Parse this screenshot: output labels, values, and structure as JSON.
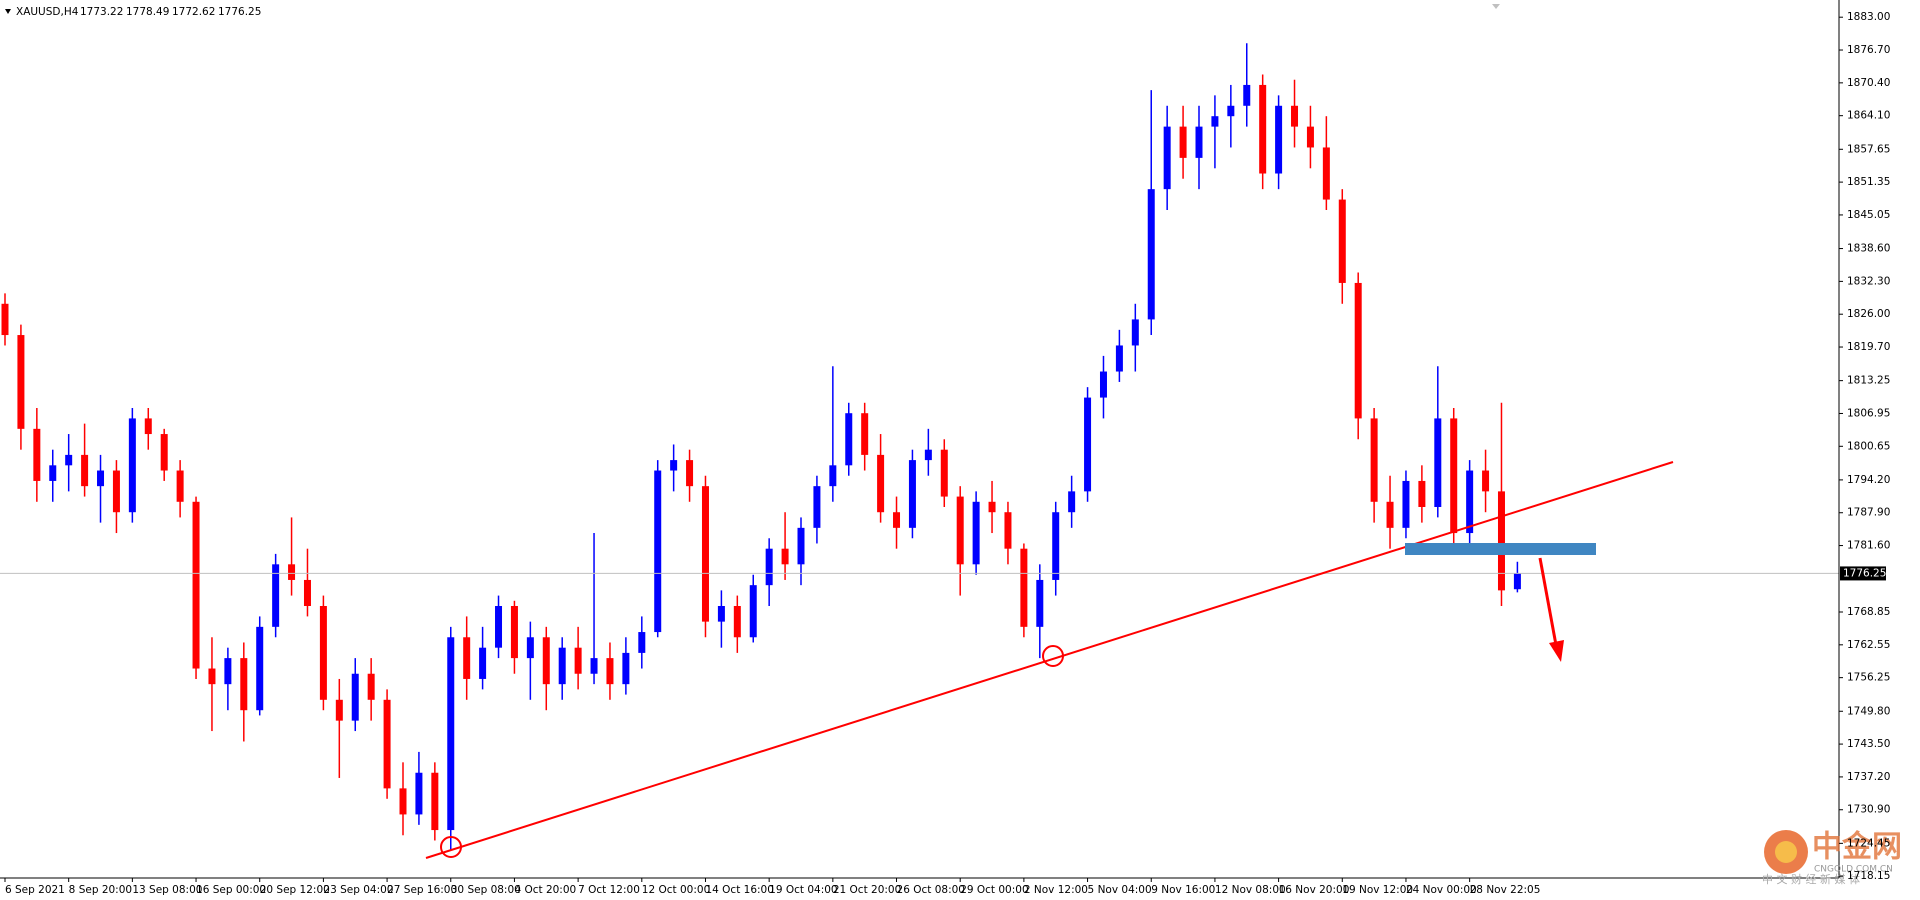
{
  "chart_data": {
    "type": "candlestick",
    "symbol": "XAUUSD,H4",
    "categories": [
      "6 Sep 2021",
      null,
      null,
      null,
      "8 Sep 20:00",
      null,
      null,
      null,
      "13 Sep 08:00",
      null,
      null,
      null,
      "16 Sep 00:00",
      null,
      null,
      null,
      "20 Sep 12:00",
      null,
      null,
      null,
      "23 Sep 04:00",
      null,
      null,
      null,
      "27 Sep 16:00",
      null,
      null,
      null,
      "30 Sep 08:00",
      null,
      null,
      null,
      "4 Oct 20:00",
      null,
      null,
      null,
      "7 Oct 12:00",
      null,
      null,
      null,
      "12 Oct 00:00",
      null,
      null,
      null,
      "14 Oct 16:00",
      null,
      null,
      null,
      "19 Oct 04:00",
      null,
      null,
      null,
      "21 Oct 20:00",
      null,
      null,
      null,
      "26 Oct 08:00",
      null,
      null,
      null,
      "29 Oct 00:00",
      null,
      null,
      null,
      "2 Nov 12:00",
      null,
      null,
      null,
      "5 Nov 04:00",
      null,
      null,
      null,
      "9 Nov 16:00",
      null,
      null,
      null,
      "12 Nov 08:00",
      null,
      null,
      null,
      "16 Nov 20:00",
      null,
      null,
      null,
      "19 Nov 12:00",
      null,
      null,
      null,
      "24 Nov 00:00",
      null,
      null,
      null,
      "28 Nov 22:05",
      null,
      null,
      null
    ],
    "open": [
      1828,
      1822,
      1804,
      1794,
      1797,
      1799,
      1793,
      1796,
      1788,
      1806,
      1803,
      1796,
      1790,
      1758,
      1755,
      1760,
      1750,
      1766,
      1778,
      1775,
      1770,
      1752,
      1748,
      1757,
      1752,
      1735,
      1730,
      1738,
      1727,
      1764,
      1756,
      1762,
      1770,
      1760,
      1764,
      1755,
      1762,
      1757,
      1760,
      1755,
      1761,
      1765,
      1796,
      1798,
      1793,
      1767,
      1770,
      1764,
      1774,
      1781,
      1778,
      1785,
      1793,
      1797,
      1807,
      1799,
      1788,
      1785,
      1798,
      1800,
      1791,
      1778,
      1790,
      1788,
      1781,
      1766,
      1775,
      1788,
      1792,
      1810,
      1815,
      1820,
      1825,
      1850,
      1862,
      1856,
      1862,
      1864,
      1866,
      1870,
      1853,
      1866,
      1862,
      1858,
      1848,
      1832,
      1806,
      1790,
      1785,
      1794,
      1789,
      1806,
      1784,
      1796,
      1792,
      1773.22
    ],
    "high": [
      1830,
      1824,
      1808,
      1800,
      1803,
      1805,
      1799,
      1798,
      1808,
      1808,
      1804,
      1798,
      1791,
      1764,
      1762,
      1763,
      1768,
      1780,
      1787,
      1781,
      1772,
      1756,
      1760,
      1760,
      1754,
      1740,
      1742,
      1740,
      1766,
      1768,
      1766,
      1772,
      1771,
      1767,
      1766,
      1764,
      1766,
      1784,
      1763,
      1764,
      1768,
      1798,
      1801,
      1800,
      1795,
      1773,
      1772,
      1776,
      1783,
      1788,
      1787,
      1795,
      1816,
      1809,
      1809,
      1803,
      1791,
      1800,
      1804,
      1802,
      1793,
      1792,
      1794,
      1790,
      1782,
      1778,
      1790,
      1795,
      1812,
      1818,
      1823,
      1828,
      1869,
      1866,
      1866,
      1866,
      1868,
      1870,
      1878,
      1872,
      1868,
      1871,
      1866,
      1864,
      1850,
      1834,
      1808,
      1795,
      1796,
      1797,
      1816,
      1808,
      1798,
      1800,
      1809,
      1778.49
    ],
    "low": [
      1820,
      1800,
      1790,
      1790,
      1792,
      1791,
      1786,
      1784,
      1786,
      1800,
      1794,
      1787,
      1756,
      1746,
      1750,
      1744,
      1749,
      1764,
      1772,
      1768,
      1750,
      1737,
      1746,
      1748,
      1733,
      1726,
      1728,
      1725,
      1723,
      1752,
      1754,
      1760,
      1757,
      1752,
      1750,
      1752,
      1754,
      1755,
      1752,
      1753,
      1758,
      1764,
      1792,
      1790,
      1764,
      1762,
      1761,
      1763,
      1770,
      1775,
      1774,
      1782,
      1790,
      1795,
      1796,
      1786,
      1781,
      1783,
      1795,
      1789,
      1772,
      1776,
      1784,
      1778,
      1764,
      1760,
      1772,
      1785,
      1790,
      1806,
      1813,
      1815,
      1822,
      1846,
      1852,
      1850,
      1854,
      1858,
      1862,
      1850,
      1850,
      1858,
      1854,
      1846,
      1828,
      1802,
      1786,
      1781,
      1783,
      1786,
      1787,
      1780,
      1782,
      1788,
      1770,
      1772.62
    ],
    "close": [
      1822,
      1804,
      1794,
      1797,
      1799,
      1793,
      1796,
      1788,
      1806,
      1803,
      1796,
      1790,
      1758,
      1755,
      1760,
      1750,
      1766,
      1778,
      1775,
      1770,
      1752,
      1748,
      1757,
      1752,
      1735,
      1730,
      1738,
      1727,
      1764,
      1756,
      1762,
      1770,
      1760,
      1764,
      1755,
      1762,
      1757,
      1760,
      1755,
      1761,
      1765,
      1796,
      1798,
      1793,
      1767,
      1770,
      1764,
      1774,
      1781,
      1778,
      1785,
      1793,
      1797,
      1807,
      1799,
      1788,
      1785,
      1798,
      1800,
      1791,
      1778,
      1790,
      1788,
      1781,
      1766,
      1775,
      1788,
      1792,
      1810,
      1815,
      1820,
      1825,
      1850,
      1862,
      1856,
      1862,
      1864,
      1866,
      1870,
      1853,
      1866,
      1862,
      1858,
      1848,
      1832,
      1806,
      1790,
      1785,
      1794,
      1789,
      1806,
      1784,
      1796,
      1792,
      1773,
      1776.25
    ],
    "up_color": "#0000ff",
    "down_color": "#ff0000",
    "price_line_color": "#c0c0c0",
    "ylim": [
      1717.8,
      1886.3
    ],
    "yticks": [
      {
        "value": 1883,
        "label": "1883.00"
      },
      {
        "value": 1876.7,
        "label": "1876.70"
      },
      {
        "value": 1870.4,
        "label": "1870.40"
      },
      {
        "value": 1864.1,
        "label": "1864.10"
      },
      {
        "value": 1857.65,
        "label": "1857.65"
      },
      {
        "value": 1851.35,
        "label": "1851.35"
      },
      {
        "value": 1845.05,
        "label": "1845.05"
      },
      {
        "value": 1838.6,
        "label": "1838.60"
      },
      {
        "value": 1832.3,
        "label": "1832.30"
      },
      {
        "value": 1826,
        "label": "1826.00"
      },
      {
        "value": 1819.7,
        "label": "1819.70"
      },
      {
        "value": 1813.25,
        "label": "1813.25"
      },
      {
        "value": 1806.95,
        "label": "1806.95"
      },
      {
        "value": 1800.65,
        "label": "1800.65"
      },
      {
        "value": 1794.2,
        "label": "1794.20"
      },
      {
        "value": 1787.9,
        "label": "1787.90"
      },
      {
        "value": 1781.6,
        "label": "1781.60"
      },
      {
        "value": 1768.85,
        "label": "1768.85"
      },
      {
        "value": 1762.55,
        "label": "1762.55"
      },
      {
        "value": 1756.25,
        "label": "1756.25"
      },
      {
        "value": 1749.8,
        "label": "1749.80"
      },
      {
        "value": 1743.5,
        "label": "1743.50"
      },
      {
        "value": 1737.2,
        "label": "1737.20"
      },
      {
        "value": 1730.9,
        "label": "1730.90"
      },
      {
        "value": 1724.45,
        "label": "1724.45"
      },
      {
        "value": 1718.15,
        "label": "1718.15"
      }
    ]
  },
  "watermark": {
    "name": "中金网",
    "domain": "CNGOLD.COM.CN",
    "slogan": "中 文 财 经 新 媒 体"
  }
}
